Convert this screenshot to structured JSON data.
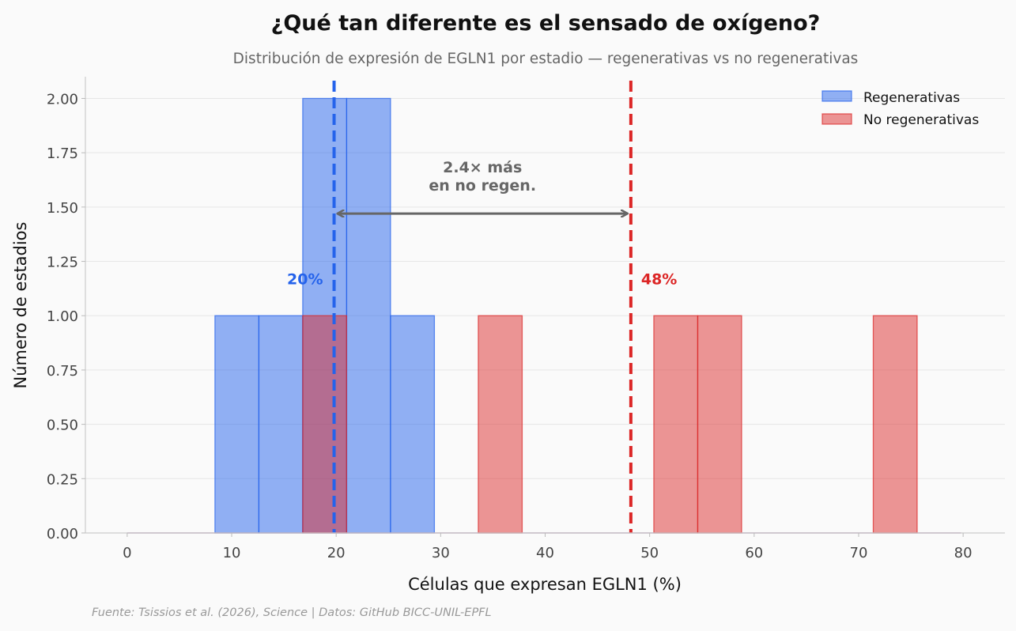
{
  "chart_data": {
    "type": "histogram",
    "title": "¿Qué tan diferente es el sensado de oxígeno?",
    "subtitle": "Distribución de expresión de EGLN1 por estadio — regenerativas vs no regenerativas",
    "xlabel": "Células que expresan EGLN1 (%)",
    "ylabel": "Número de estadios",
    "xlim": [
      -4,
      84
    ],
    "ylim": [
      0,
      2.1
    ],
    "xticks": [
      0,
      10,
      20,
      30,
      40,
      50,
      60,
      70,
      80
    ],
    "yticks": [
      0,
      0.25,
      0.5,
      0.75,
      1.0,
      1.25,
      1.5,
      1.75,
      2.0
    ],
    "grid": "horizontal",
    "legend_position": "top-right",
    "series": [
      {
        "name": "Regenerativas",
        "color": "#2563eb",
        "bin_edges": [
          0,
          4.2,
          8.4,
          12.6,
          16.8,
          21.0,
          25.2,
          29.4,
          33.6,
          37.8,
          42.0,
          46.2,
          50.4,
          54.6,
          58.8,
          63.0,
          67.2,
          71.4,
          75.6,
          79.8
        ],
        "counts": [
          0,
          0,
          1,
          1,
          2,
          2,
          1,
          0,
          0,
          0,
          0,
          0,
          0,
          0,
          0,
          0,
          0,
          0,
          0
        ],
        "mean_label": "20%",
        "mean_value": 19.8
      },
      {
        "name": "No regenerativas",
        "color": "#dc2626",
        "bin_edges": [
          0,
          4.2,
          8.4,
          12.6,
          16.8,
          21.0,
          25.2,
          29.4,
          33.6,
          37.8,
          42.0,
          46.2,
          50.4,
          54.6,
          58.8,
          63.0,
          67.2,
          71.4,
          75.6,
          79.8
        ],
        "counts": [
          0,
          0,
          0,
          0,
          1,
          0,
          0,
          0,
          1,
          0,
          0,
          0,
          1,
          1,
          0,
          0,
          0,
          1,
          0
        ],
        "mean_label": "48%",
        "mean_value": 48.2
      }
    ],
    "annotation": {
      "lines": [
        "2.4× más",
        "en no regen."
      ],
      "arrow_from": 19.8,
      "arrow_to": 48.2,
      "arrow_y": 1.47,
      "text_y": 1.6
    },
    "pct_label_y": 1.17,
    "source": "Fuente: Tsissios et al. (2026), Science | Datos: GitHub BICC-UNIL-EPFL"
  }
}
